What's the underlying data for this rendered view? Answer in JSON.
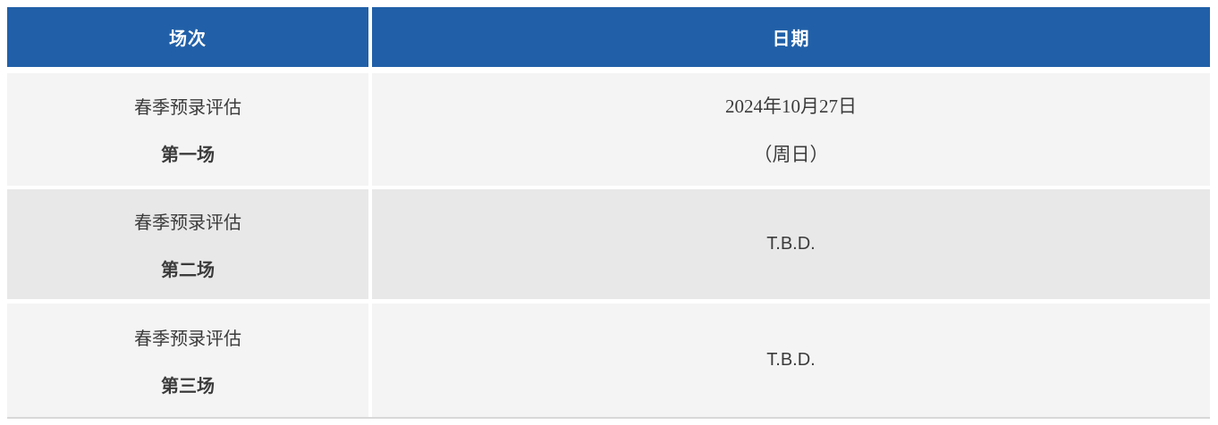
{
  "table": {
    "columns": [
      {
        "key": "session",
        "label": "场次"
      },
      {
        "key": "date",
        "label": "日期"
      }
    ],
    "rows": [
      {
        "session_name": "春季预录评估",
        "session_number": "第一场",
        "date_line1": "2024年10月27日",
        "date_line2": "（周日）"
      },
      {
        "session_name": "春季预录评估",
        "session_number": "第二场",
        "date_line1": "T.B.D."
      },
      {
        "session_name": "春季预录评估",
        "session_number": "第三场",
        "date_line1": "T.B.D."
      }
    ],
    "colors": {
      "header_bg": "#2160a8",
      "header_text": "#ffffff",
      "row_light_bg": "#f4f4f4",
      "row_dark_bg": "#e8e8e8",
      "body_text": "#3b3b3b",
      "bottom_border": "#d8d8d8",
      "grid_gap": "#ffffff"
    }
  }
}
